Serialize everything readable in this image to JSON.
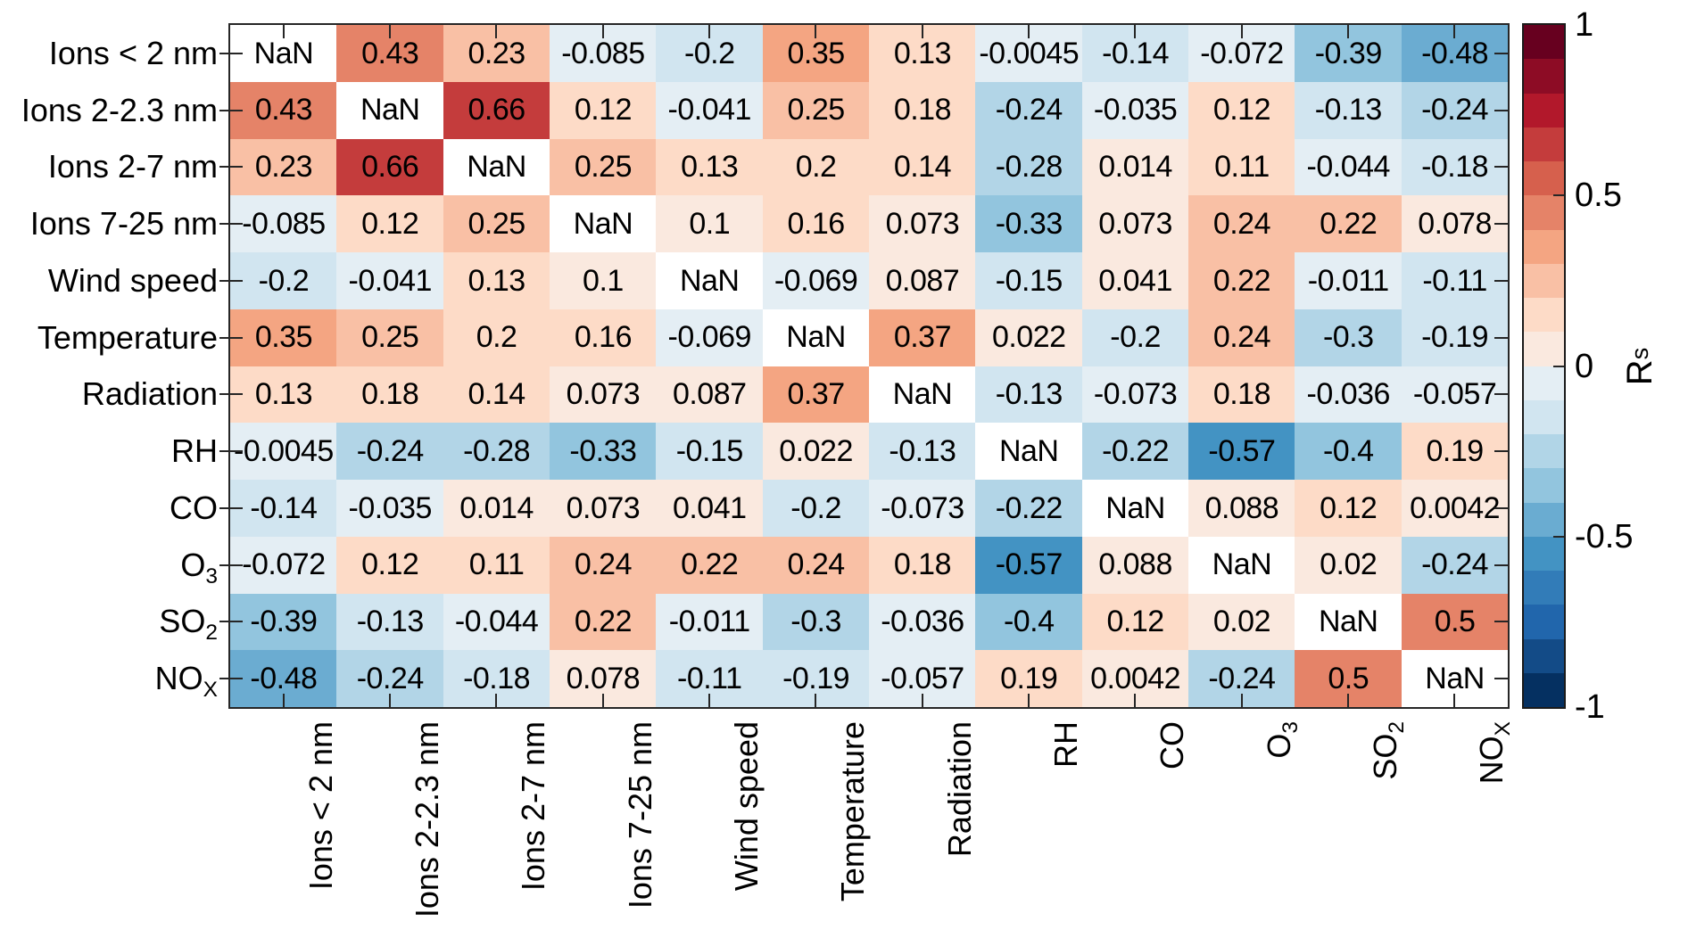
{
  "chart_data": {
    "type": "heatmap",
    "title": "",
    "categories": [
      "Ions < 2 nm",
      "Ions 2-2.3 nm",
      "Ions 2-7 nm",
      "Ions 7-25 nm",
      "Wind speed",
      "Temperature",
      "Radiation",
      "RH",
      "CO",
      "O_3",
      "SO_2",
      "NO_X"
    ],
    "nan_label": "NaN",
    "matrix": [
      [
        null,
        0.43,
        0.23,
        -0.085,
        -0.2,
        0.35,
        0.13,
        -0.0045,
        -0.14,
        -0.072,
        -0.39,
        -0.48
      ],
      [
        0.43,
        null,
        0.66,
        0.12,
        -0.041,
        0.25,
        0.18,
        -0.24,
        -0.035,
        0.12,
        -0.13,
        -0.24
      ],
      [
        0.23,
        0.66,
        null,
        0.25,
        0.13,
        0.2,
        0.14,
        -0.28,
        0.014,
        0.11,
        -0.044,
        -0.18
      ],
      [
        -0.085,
        0.12,
        0.25,
        null,
        0.1,
        0.16,
        0.073,
        -0.33,
        0.073,
        0.24,
        0.22,
        0.078
      ],
      [
        -0.2,
        -0.041,
        0.13,
        0.1,
        null,
        -0.069,
        0.087,
        -0.15,
        0.041,
        0.22,
        -0.011,
        -0.11
      ],
      [
        0.35,
        0.25,
        0.2,
        0.16,
        -0.069,
        null,
        0.37,
        0.022,
        -0.2,
        0.24,
        -0.3,
        -0.19
      ],
      [
        0.13,
        0.18,
        0.14,
        0.073,
        0.087,
        0.37,
        null,
        -0.13,
        -0.073,
        0.18,
        -0.036,
        -0.057
      ],
      [
        -0.0045,
        -0.24,
        -0.28,
        -0.33,
        -0.15,
        0.022,
        -0.13,
        null,
        -0.22,
        -0.57,
        -0.4,
        0.19
      ],
      [
        -0.14,
        -0.035,
        0.014,
        0.073,
        0.041,
        -0.2,
        -0.073,
        -0.22,
        null,
        0.088,
        0.12,
        0.0042
      ],
      [
        -0.072,
        0.12,
        0.11,
        0.24,
        0.22,
        0.24,
        0.18,
        -0.57,
        0.088,
        null,
        0.02,
        -0.24
      ],
      [
        -0.39,
        -0.13,
        -0.044,
        0.22,
        -0.011,
        -0.3,
        -0.036,
        -0.4,
        0.12,
        0.02,
        null,
        0.5
      ],
      [
        -0.48,
        -0.24,
        -0.18,
        0.078,
        -0.11,
        -0.19,
        -0.057,
        0.19,
        0.0042,
        -0.24,
        0.5,
        null
      ]
    ],
    "value_range": [
      -1,
      1
    ],
    "nan_color": "#ffffff",
    "colormap_anchors": [
      {
        "v": 1.0,
        "c": "#67001f"
      },
      {
        "v": 0.8,
        "c": "#b2182b"
      },
      {
        "v": 0.6,
        "c": "#d6604d"
      },
      {
        "v": 0.4,
        "c": "#f4a582"
      },
      {
        "v": 0.2,
        "c": "#fddbc7"
      },
      {
        "v": 0.0,
        "c": "#f7f7f7"
      },
      {
        "v": -0.2,
        "c": "#d1e5f0"
      },
      {
        "v": -0.4,
        "c": "#92c5de"
      },
      {
        "v": -0.6,
        "c": "#4393c3"
      },
      {
        "v": -0.8,
        "c": "#2166ac"
      },
      {
        "v": -1.0,
        "c": "#053061"
      }
    ],
    "colorbar": {
      "label": "R_s",
      "bins": 20,
      "ticks": [
        1,
        0.5,
        0,
        -0.5,
        -1
      ],
      "tick_labels": [
        "1",
        "0.5",
        "0",
        "-0.5",
        "-1"
      ]
    },
    "grid": false,
    "legend_position": "right-colorbar"
  }
}
